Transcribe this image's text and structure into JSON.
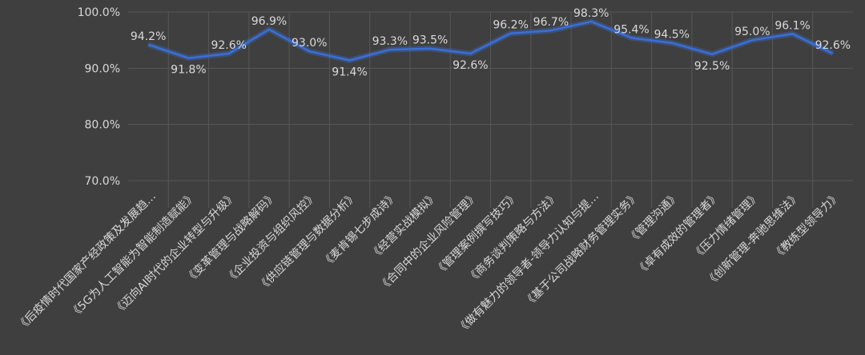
{
  "chart_data": {
    "type": "line",
    "title": "",
    "xlabel": "",
    "ylabel": "",
    "ylim": [
      70,
      100
    ],
    "y_ticks": [
      70,
      80,
      90,
      100
    ],
    "y_tick_labels": [
      "70.0%",
      "80.0%",
      "90.0%",
      "100.0%"
    ],
    "grid": "vertical-and-horizontal",
    "legend": "none",
    "categories": [
      "《后疫情时代国家产经政策及发展趋…",
      "《5G为人工智能为智能制造赋能》",
      "《迈向AI时代的企业转型与升级》",
      "《变革管理与战略解码》",
      "《企业投资与组织风控》",
      "《供应链管理与数据分析》",
      "《麦肯锡七步成诗》",
      "《经营实战模拟》",
      "《合同中的企业风险管理》",
      "《管理案例撰写技巧》",
      "《商务谈判策略与方法》",
      "《做有魅力的领导者-领导力认知与提…",
      "《基于公司战略财务管理实务》",
      "《管理沟通》",
      "《卓有成效的管理者》",
      "《压力情绪管理》",
      "《创新管理-奔驰思维法》",
      "《教练型领导力》"
    ],
    "values": [
      94.2,
      91.8,
      92.6,
      96.9,
      93.0,
      91.4,
      93.3,
      93.5,
      92.6,
      96.2,
      96.7,
      98.3,
      95.4,
      94.5,
      92.5,
      95.0,
      96.1,
      92.6
    ],
    "value_labels": [
      "94.2%",
      "91.8%",
      "92.6%",
      "96.9%",
      "93.0%",
      "91.4%",
      "93.3%",
      "93.5%",
      "92.6%",
      "96.2%",
      "96.7%",
      "98.3%",
      "95.4%",
      "94.5%",
      "92.5%",
      "95.0%",
      "96.1%",
      "92.6%"
    ],
    "colors": {
      "background": "#3f3f3f",
      "line": "#3a6fd8",
      "grid": "#575757",
      "text": "#d9d9d9"
    }
  }
}
